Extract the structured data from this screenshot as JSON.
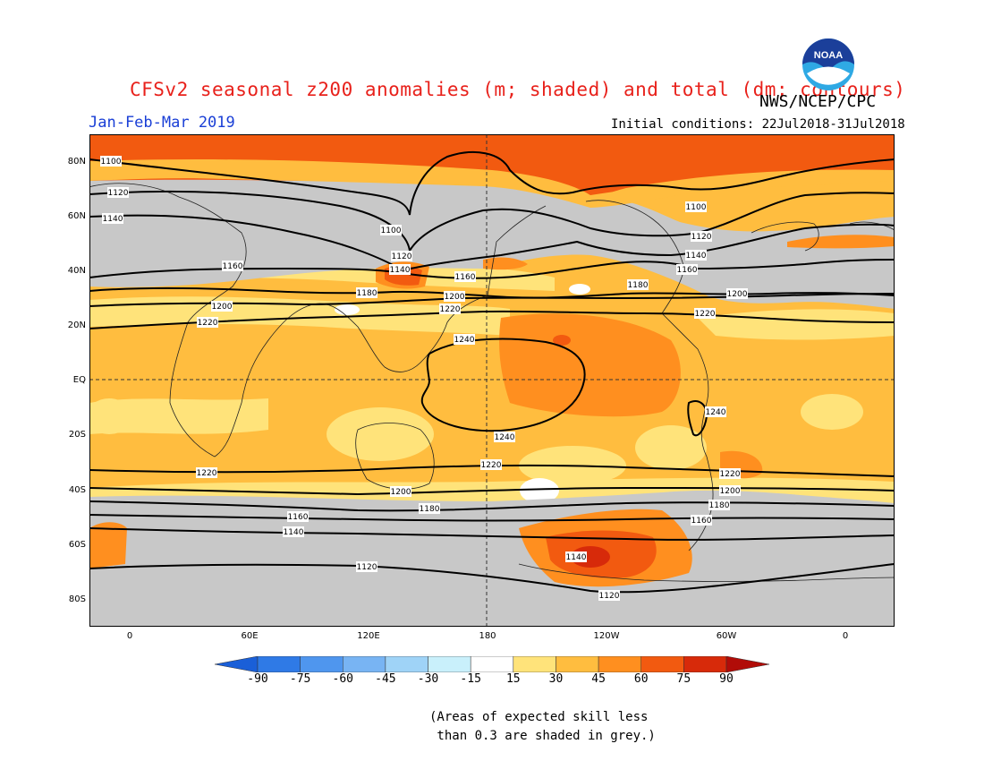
{
  "header": {
    "title": "CFSv2 seasonal z200 anomalies (m; shaded) and total (dm; contours)",
    "agency": "NWS/NCEP/CPC",
    "period": "Jan-Feb-Mar 2019",
    "initial_conditions": "Initial conditions: 22Jul2018-31Jul2018",
    "logo_text": "NOAA"
  },
  "map": {
    "lat_labels": [
      "80N",
      "60N",
      "40N",
      "20N",
      "EQ",
      "20S",
      "40S",
      "60S",
      "80S"
    ],
    "lon_labels": [
      "0",
      "60E",
      "120E",
      "180",
      "120W",
      "60W",
      "0"
    ],
    "contour_labels": [
      "1100",
      "1120",
      "1140",
      "1160",
      "1180",
      "1200",
      "1220",
      "1240"
    ]
  },
  "colorbar": {
    "ticks": [
      "-90",
      "-75",
      "-60",
      "-45",
      "-30",
      "-15",
      "15",
      "30",
      "45",
      "60",
      "75",
      "90"
    ],
    "colors": [
      "#1a5fd8",
      "#2f7ae6",
      "#4f96ee",
      "#78b4f3",
      "#9fd3f7",
      "#c9f0fb",
      "#ffffff",
      "#ffe37a",
      "#ffbd3f",
      "#ff8f1f",
      "#f25a10",
      "#d72a0a",
      "#b10c08"
    ]
  },
  "note": {
    "line1": "(Areas of expected skill less",
    "line2": " than 0.3 are shaded in grey.)"
  },
  "colors": {
    "grey": "#c8c8c8",
    "title_red": "#e8211b",
    "period_blue": "#1a3fd6"
  }
}
